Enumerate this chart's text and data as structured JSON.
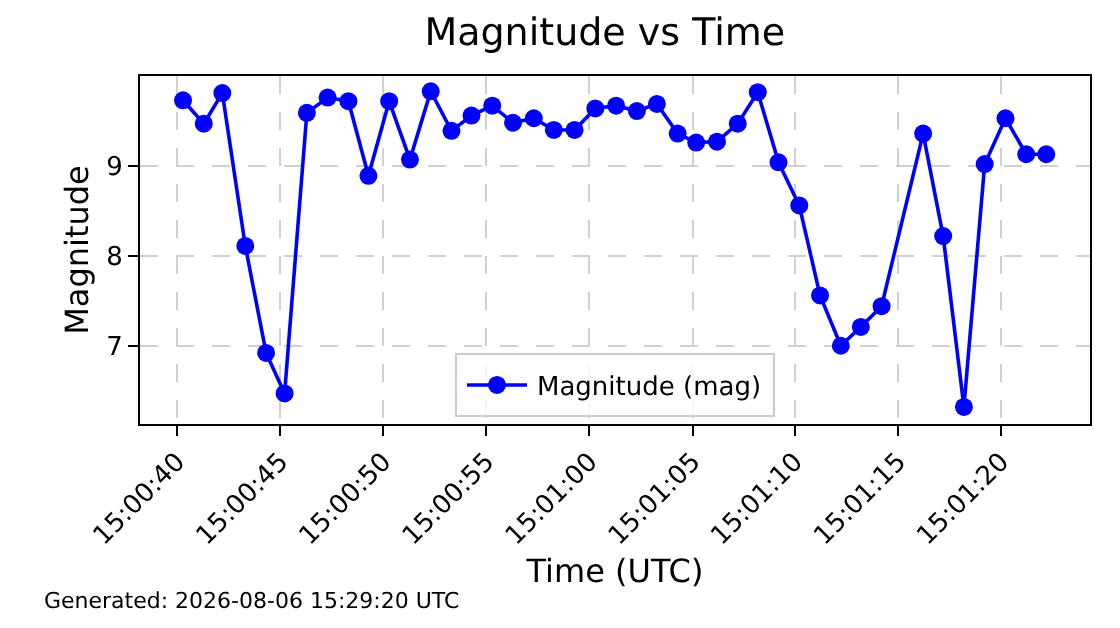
{
  "chart_data": {
    "type": "line",
    "title": "Magnitude vs Time",
    "xlabel": "Time (UTC)",
    "ylabel": "Magnitude",
    "x": [
      15.01119,
      15.01147,
      15.01172,
      15.01203,
      15.01231,
      15.01256,
      15.01286,
      15.01314,
      15.01342,
      15.01369,
      15.01397,
      15.01425,
      15.01453,
      15.01481,
      15.01508,
      15.01536,
      15.01564,
      15.01592,
      15.01619,
      15.01647,
      15.01675,
      15.01703,
      15.01731,
      15.01758,
      15.01786,
      15.01811,
      15.01839,
      15.01867,
      15.01894,
      15.01922,
      15.0195,
      15.01978,
      15.02006,
      15.02033,
      15.02061,
      15.02117,
      15.02144,
      15.02172,
      15.022,
      15.02228,
      15.02256,
      15.02283
    ],
    "series": [
      {
        "name": "Magnitude (mag)",
        "color": "#0000ff",
        "values": [
          9.73,
          9.47,
          9.81,
          8.11,
          6.92,
          6.47,
          9.59,
          9.76,
          9.72,
          8.89,
          9.72,
          9.07,
          9.83,
          9.39,
          9.56,
          9.67,
          9.48,
          9.53,
          9.4,
          9.4,
          9.64,
          9.67,
          9.61,
          9.69,
          9.36,
          9.26,
          9.27,
          9.47,
          9.82,
          9.04,
          8.56,
          7.56,
          7.0,
          7.21,
          7.44,
          9.36,
          8.22,
          6.32,
          9.02,
          9.53,
          9.13,
          9.13
        ]
      }
    ],
    "xlim": [
      15.01061,
      15.02342
    ],
    "ylim": [
      6.13,
      10.0
    ],
    "xticks": [
      {
        "value": 15.01111,
        "label": "15:00:40"
      },
      {
        "value": 15.0125,
        "label": "15:00:45"
      },
      {
        "value": 15.01389,
        "label": "15:00:50"
      },
      {
        "value": 15.01528,
        "label": "15:00:55"
      },
      {
        "value": 15.01667,
        "label": "15:01:00"
      },
      {
        "value": 15.01806,
        "label": "15:01:05"
      },
      {
        "value": 15.01944,
        "label": "15:01:10"
      },
      {
        "value": 15.02083,
        "label": "15:01:15"
      },
      {
        "value": 15.02222,
        "label": "15:01:20"
      }
    ],
    "yticks": [
      7,
      8,
      9
    ],
    "grid": true,
    "legend": "bottom",
    "marker": "circle",
    "line_style": "solid",
    "annotations": [
      "Generated: 2026-08-06 15:29:20 UTC"
    ]
  }
}
